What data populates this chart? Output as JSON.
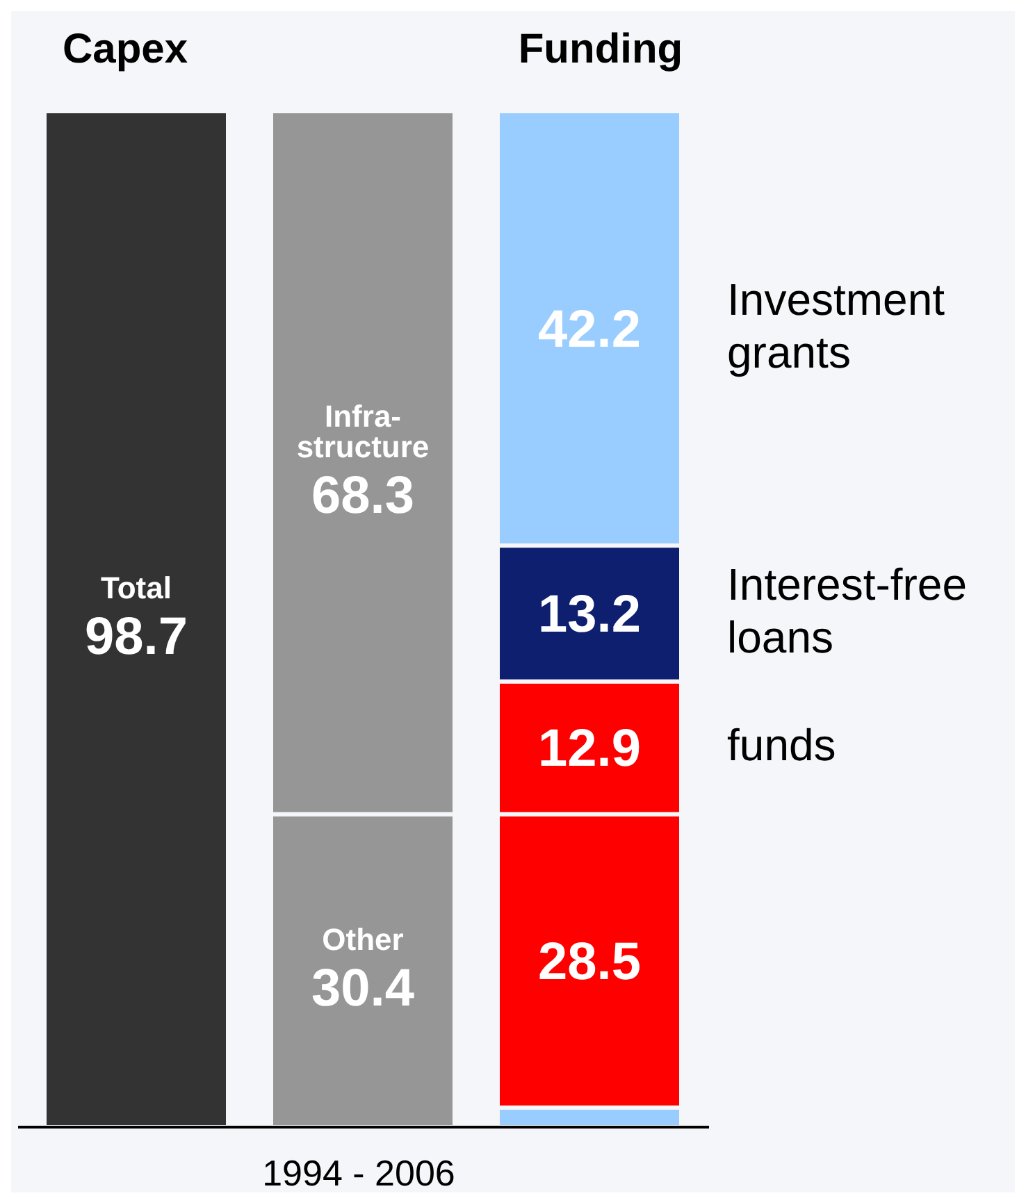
{
  "chart_data": {
    "type": "bar",
    "stacked": true,
    "categories": [
      "Capex",
      null,
      "Funding"
    ],
    "xlabel": "1994 - 2006",
    "series": [
      {
        "name": "Total",
        "color": "#333333",
        "values": [
          98.7,
          null,
          null
        ],
        "value_labels": [
          "98.7",
          null,
          null
        ]
      },
      {
        "name": "Other",
        "color": "#969696",
        "values": [
          null,
          30.4,
          null
        ],
        "value_labels": [
          null,
          "30.4",
          null
        ]
      },
      {
        "name": "Infra-\nstructure",
        "color": "#969696",
        "values": [
          null,
          68.3,
          null
        ],
        "value_labels": [
          null,
          "68.3",
          null
        ]
      },
      {
        "color": "#99ccff",
        "values": [
          null,
          null,
          1.9
        ]
      },
      {
        "color": "#ff0000",
        "values": [
          null,
          null,
          28.5
        ],
        "value_labels": [
          null,
          null,
          "28.5"
        ]
      },
      {
        "name": "funds",
        "color": "#ff0000",
        "values": [
          null,
          null,
          12.9
        ],
        "value_labels": [
          null,
          null,
          "12.9"
        ]
      },
      {
        "name": "Interest-free loans",
        "color": "#0d1f6e",
        "values": [
          null,
          null,
          13.2
        ],
        "value_labels": [
          null,
          null,
          "13.2"
        ]
      },
      {
        "name": "Investment grants",
        "color": "#99ccff",
        "values": [
          null,
          null,
          42.2
        ],
        "value_labels": [
          null,
          null,
          "42.2"
        ]
      }
    ]
  }
}
